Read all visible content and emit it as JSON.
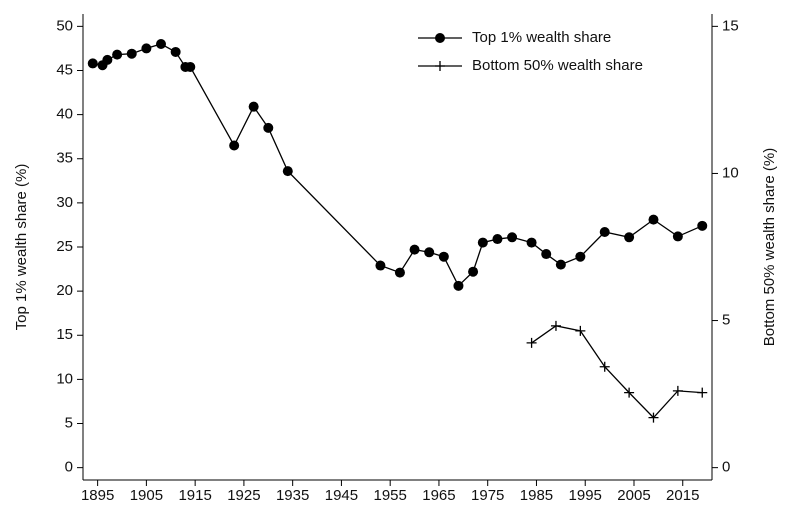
{
  "chart_data": {
    "type": "line",
    "ylabel": "Top 1% wealth share (%)",
    "y2label": "Bottom 50% wealth share (%)",
    "xlim": [
      1892,
      2021
    ],
    "xticks": [
      1895,
      1905,
      1915,
      1925,
      1935,
      1945,
      1955,
      1965,
      1975,
      1985,
      1995,
      2005,
      2015
    ],
    "ylim": [
      -1.4,
      51.4
    ],
    "yticks": [
      0,
      5,
      10,
      15,
      20,
      25,
      30,
      35,
      40,
      45,
      50
    ],
    "y2lim": [
      -0.42,
      15.42
    ],
    "y2ticks": [
      0,
      5,
      10,
      15
    ],
    "legend": "upper right",
    "series": [
      {
        "name": "Top 1% wealth share",
        "color": "#000000",
        "marker": "circle",
        "x": [
          1894,
          1896,
          1897,
          1899,
          1902,
          1905,
          1908,
          1911,
          1913,
          1914,
          1923,
          1927,
          1930,
          1934,
          1953,
          1957,
          1960,
          1963,
          1966,
          1969,
          1972,
          1974,
          1977,
          1980,
          1984,
          1987,
          1990,
          1994,
          1999,
          2004,
          2009,
          2014,
          2019
        ],
        "values": [
          45.8,
          45.6,
          46.2,
          46.8,
          46.9,
          47.5,
          48.0,
          47.1,
          45.4,
          45.4,
          36.5,
          40.9,
          38.5,
          33.6,
          22.9,
          22.1,
          24.7,
          24.4,
          23.9,
          20.6,
          22.2,
          25.5,
          25.9,
          26.1,
          25.5,
          24.2,
          23.0,
          23.9,
          26.7,
          26.1,
          28.1,
          26.2,
          27.4
        ]
      },
      {
        "name": "Bottom 50% wealth share",
        "color": "#000000",
        "marker": "plus",
        "axis": "y2",
        "x": [
          1984,
          1989,
          1994,
          1999,
          2004,
          2009,
          2014,
          2019
        ],
        "values": [
          4.24,
          4.82,
          4.65,
          3.43,
          2.55,
          1.7,
          2.61,
          2.55
        ]
      }
    ]
  }
}
